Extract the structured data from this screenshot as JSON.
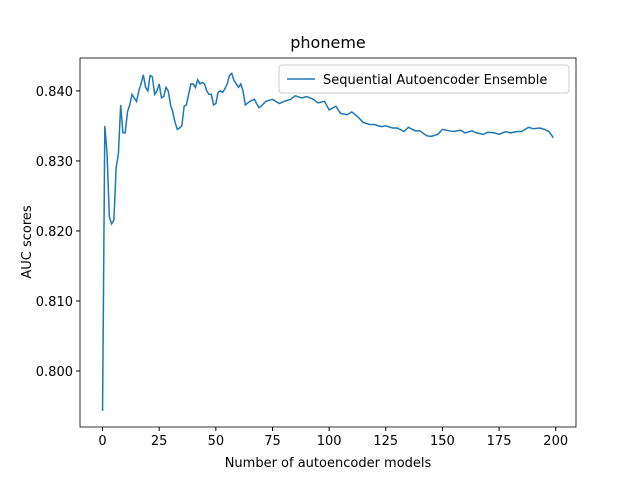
{
  "chart_data": {
    "type": "line",
    "title": "phoneme",
    "xlabel": "Number of autoencoder models",
    "ylabel": "AUC scores",
    "x": [
      0,
      1,
      2,
      3,
      4,
      5,
      6,
      7,
      8,
      9,
      10,
      11,
      12,
      13,
      14,
      15,
      16,
      17,
      18,
      19,
      20,
      21,
      22,
      23,
      24,
      25,
      26,
      27,
      28,
      29,
      30,
      31,
      32,
      33,
      34,
      35,
      36,
      37,
      38,
      39,
      40,
      41,
      42,
      43,
      44,
      45,
      46,
      47,
      48,
      49,
      50,
      51,
      52,
      53,
      54,
      55,
      56,
      57,
      58,
      59,
      60,
      61,
      62,
      63,
      65,
      67,
      69,
      70,
      72,
      75,
      78,
      80,
      83,
      85,
      88,
      90,
      93,
      95,
      98,
      100,
      103,
      105,
      108,
      110,
      113,
      115,
      118,
      120,
      123,
      125,
      128,
      130,
      133,
      135,
      138,
      140,
      143,
      145,
      148,
      150,
      153,
      155,
      158,
      160,
      163,
      165,
      168,
      170,
      173,
      175,
      178,
      180,
      183,
      185,
      188,
      190,
      193,
      195,
      197,
      199
    ],
    "series": [
      {
        "name": "Sequential Autoencoder Ensemble",
        "color": "#1f77b4",
        "values": [
          0.7943,
          0.835,
          0.831,
          0.822,
          0.821,
          0.8215,
          0.829,
          0.831,
          0.838,
          0.834,
          0.834,
          0.837,
          0.838,
          0.8395,
          0.839,
          0.8385,
          0.84,
          0.841,
          0.8423,
          0.8405,
          0.84,
          0.8422,
          0.842,
          0.8395,
          0.84,
          0.841,
          0.839,
          0.8392,
          0.8405,
          0.84,
          0.838,
          0.837,
          0.8355,
          0.8345,
          0.8347,
          0.835,
          0.8378,
          0.838,
          0.8395,
          0.841,
          0.841,
          0.8405,
          0.8416,
          0.841,
          0.8412,
          0.841,
          0.84,
          0.8395,
          0.8395,
          0.838,
          0.8382,
          0.8398,
          0.84,
          0.8398,
          0.8403,
          0.841,
          0.8422,
          0.8425,
          0.8415,
          0.841,
          0.8405,
          0.841,
          0.84,
          0.838,
          0.8385,
          0.8388,
          0.8376,
          0.8378,
          0.8385,
          0.8388,
          0.8382,
          0.8385,
          0.8388,
          0.8393,
          0.839,
          0.8392,
          0.8388,
          0.8383,
          0.8385,
          0.8373,
          0.8378,
          0.8368,
          0.8366,
          0.837,
          0.8362,
          0.8355,
          0.8352,
          0.8352,
          0.8349,
          0.835,
          0.8347,
          0.8347,
          0.8342,
          0.8348,
          0.8343,
          0.8343,
          0.8336,
          0.8335,
          0.8338,
          0.8345,
          0.8343,
          0.8342,
          0.8344,
          0.834,
          0.8343,
          0.834,
          0.8338,
          0.8341,
          0.834,
          0.8338,
          0.8342,
          0.834,
          0.8342,
          0.8342,
          0.8348,
          0.8346,
          0.8347,
          0.8345,
          0.8342,
          0.8333
        ]
      }
    ],
    "xlim": [
      -9.95,
      208.95
    ],
    "ylim": [
      0.792,
      0.8447
    ],
    "xticks": [
      0,
      25,
      50,
      75,
      100,
      125,
      150,
      175,
      200
    ],
    "yticks": [
      {
        "value": 0.8,
        "label": "0.800"
      },
      {
        "value": 0.81,
        "label": "0.810"
      },
      {
        "value": 0.82,
        "label": "0.820"
      },
      {
        "value": 0.83,
        "label": "0.830"
      },
      {
        "value": 0.84,
        "label": "0.840"
      }
    ],
    "legend": "upper right"
  }
}
